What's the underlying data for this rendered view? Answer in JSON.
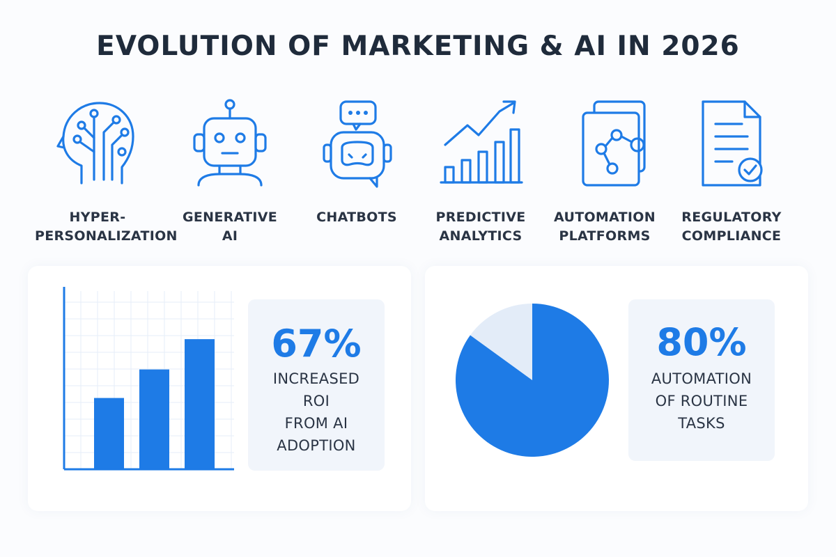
{
  "title": "EVOLUTION OF MARKETING & AI IN 2026",
  "colors": {
    "accent": "#1e7be6",
    "light_accent": "#e3ecf8",
    "text": "#1f2b3b"
  },
  "categories": [
    {
      "label": "HYPER-\nPERSONALIZATION",
      "icon": "head-circuit-icon"
    },
    {
      "label": "GENERATIVE\nAI",
      "icon": "robot-icon"
    },
    {
      "label": "CHATBOTS",
      "icon": "chatbot-icon"
    },
    {
      "label": "PREDICTIVE\nANALYTICS",
      "icon": "trend-chart-icon"
    },
    {
      "label": "AUTOMATION\nPLATFORMS",
      "icon": "workflow-icon"
    },
    {
      "label": "REGULATORY\nCOMPLIANCE",
      "icon": "document-check-icon"
    }
  ],
  "stats": [
    {
      "value": "67%",
      "label": "INCREASED\nROI\nFROM AI\nADOPTION"
    },
    {
      "value": "80%",
      "label": "AUTOMATION\nOF ROUTINE\nTASKS"
    }
  ],
  "chart_data": [
    {
      "type": "bar",
      "categories": [
        "",
        "",
        ""
      ],
      "values": [
        40,
        56,
        73
      ],
      "ylim": [
        0,
        100
      ],
      "grid": true,
      "title": "",
      "xlabel": "",
      "ylabel": ""
    },
    {
      "type": "pie",
      "slices": [
        {
          "value": 85,
          "color": "#1e7be6"
        },
        {
          "value": 15,
          "color": "#e3ecf8"
        }
      ],
      "title": ""
    }
  ]
}
